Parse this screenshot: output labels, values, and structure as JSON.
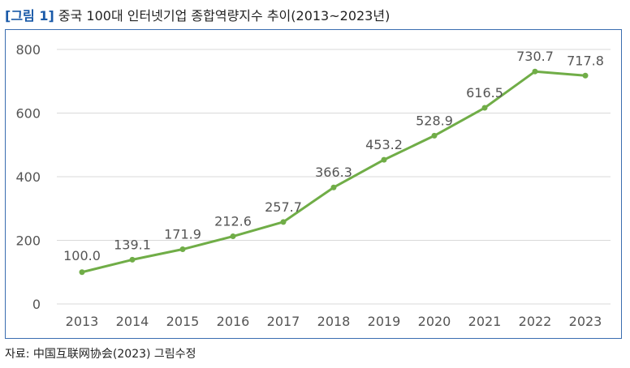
{
  "figure": {
    "label": "[그림 1]",
    "title": "중국 100대 인터넷기업 종합역량지수 추이(2013~2023년)"
  },
  "source": "자료: 中国互联网协会(2023) 그림수정",
  "colors": {
    "line": "#70ad47",
    "grid": "#d9d9d9",
    "frame": "#3a6db0",
    "label_blue": "#1a5aa8"
  },
  "chart_data": {
    "type": "line",
    "title": "중국 100대 인터넷기업 종합역량지수 추이(2013~2023년)",
    "categories": [
      "2013",
      "2014",
      "2015",
      "2016",
      "2017",
      "2018",
      "2019",
      "2020",
      "2021",
      "2022",
      "2023"
    ],
    "series": [
      {
        "values": [
          100.0,
          139.1,
          171.9,
          212.6,
          257.7,
          366.3,
          453.2,
          528.9,
          616.5,
          730.7,
          717.8
        ],
        "labels": [
          "100.0",
          "139.1",
          "171.9",
          "212.6",
          "257.7",
          "366.3",
          "453.2",
          "528.9",
          "616.5",
          "730.7",
          "717.8"
        ]
      }
    ],
    "yticks": [
      "0",
      "200",
      "400",
      "600",
      "800"
    ],
    "ylim": [
      0,
      800
    ],
    "grid": true,
    "legend": "none",
    "xlabel": "",
    "ylabel": ""
  }
}
